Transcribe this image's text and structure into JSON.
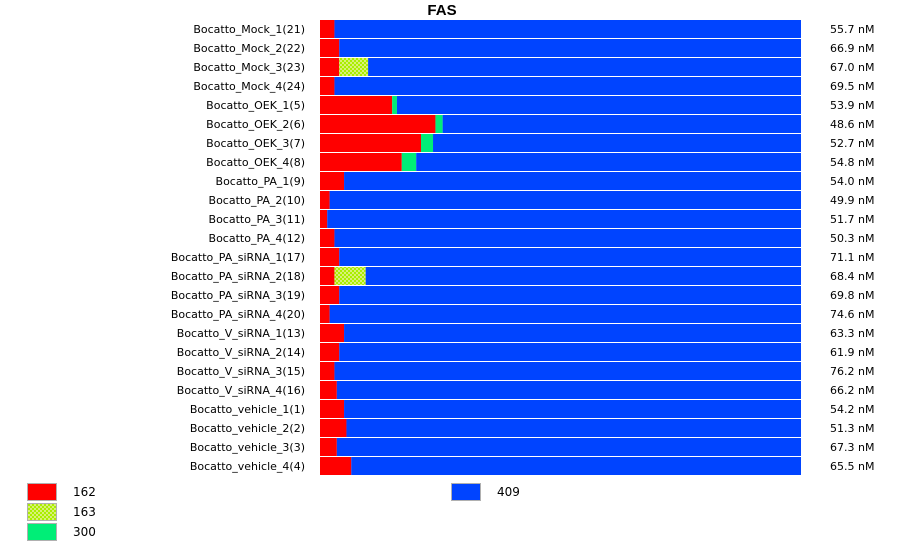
{
  "chart_data": {
    "type": "bar",
    "stacked": true,
    "orientation": "horizontal",
    "normalized": true,
    "title": "FAS",
    "categories": [
      "Bocatto_Mock_1(21)",
      "Bocatto_Mock_2(22)",
      "Bocatto_Mock_3(23)",
      "Bocatto_Mock_4(24)",
      "Bocatto_OEK_1(5)",
      "Bocatto_OEK_2(6)",
      "Bocatto_OEK_3(7)",
      "Bocatto_OEK_4(8)",
      "Bocatto_PA_1(9)",
      "Bocatto_PA_2(10)",
      "Bocatto_PA_3(11)",
      "Bocatto_PA_4(12)",
      "Bocatto_PA_siRNA_1(17)",
      "Bocatto_PA_siRNA_2(18)",
      "Bocatto_PA_siRNA_3(19)",
      "Bocatto_PA_siRNA_4(20)",
      "Bocatto_V_siRNA_1(13)",
      "Bocatto_V_siRNA_2(14)",
      "Bocatto_V_siRNA_3(15)",
      "Bocatto_V_siRNA_4(16)",
      "Bocatto_vehicle_1(1)",
      "Bocatto_vehicle_2(2)",
      "Bocatto_vehicle_3(3)",
      "Bocatto_vehicle_4(4)"
    ],
    "totals": [
      "55.7 nM",
      "66.9 nM",
      "67.0 nM",
      "69.5 nM",
      "53.9 nM",
      "48.6 nM",
      "52.7 nM",
      "54.8 nM",
      "54.0 nM",
      "49.9 nM",
      "51.7 nM",
      "50.3 nM",
      "71.1 nM",
      "68.4 nM",
      "69.8 nM",
      "74.6 nM",
      "63.3 nM",
      "61.9 nM",
      "76.2 nM",
      "66.2 nM",
      "54.2 nM",
      "51.3 nM",
      "67.3 nM",
      "65.5 nM"
    ],
    "series": [
      {
        "name": "162",
        "color": "#ff0000",
        "pattern": "solid",
        "values": [
          0.03,
          0.04,
          0.04,
          0.03,
          0.15,
          0.24,
          0.21,
          0.17,
          0.05,
          0.02,
          0.015,
          0.03,
          0.04,
          0.03,
          0.04,
          0.02,
          0.05,
          0.04,
          0.03,
          0.035,
          0.05,
          0.055,
          0.035,
          0.065
        ]
      },
      {
        "name": "163",
        "color": "#aaee00",
        "pattern": "checker",
        "values": [
          0,
          0,
          0.06,
          0,
          0,
          0,
          0,
          0,
          0,
          0,
          0,
          0,
          0,
          0.065,
          0,
          0,
          0,
          0,
          0,
          0,
          0,
          0,
          0,
          0
        ]
      },
      {
        "name": "300",
        "color": "#00ee77",
        "pattern": "solid",
        "values": [
          0,
          0,
          0,
          0,
          0.01,
          0.015,
          0.025,
          0.03,
          0,
          0,
          0,
          0,
          0,
          0,
          0,
          0,
          0,
          0,
          0,
          0,
          0,
          0,
          0,
          0
        ]
      },
      {
        "name": "409",
        "color": "#0044ff",
        "pattern": "solid",
        "values": [
          0.97,
          0.96,
          0.9,
          0.97,
          0.84,
          0.745,
          0.765,
          0.8,
          0.95,
          0.98,
          0.985,
          0.97,
          0.96,
          0.905,
          0.96,
          0.98,
          0.95,
          0.96,
          0.97,
          0.965,
          0.95,
          0.945,
          0.965,
          0.935
        ]
      }
    ],
    "legend": {
      "left_column": [
        "162",
        "163",
        "300"
      ],
      "right_column": [
        "409"
      ],
      "placement": "bottom"
    },
    "xlim": [
      0,
      1
    ],
    "grid": false
  }
}
